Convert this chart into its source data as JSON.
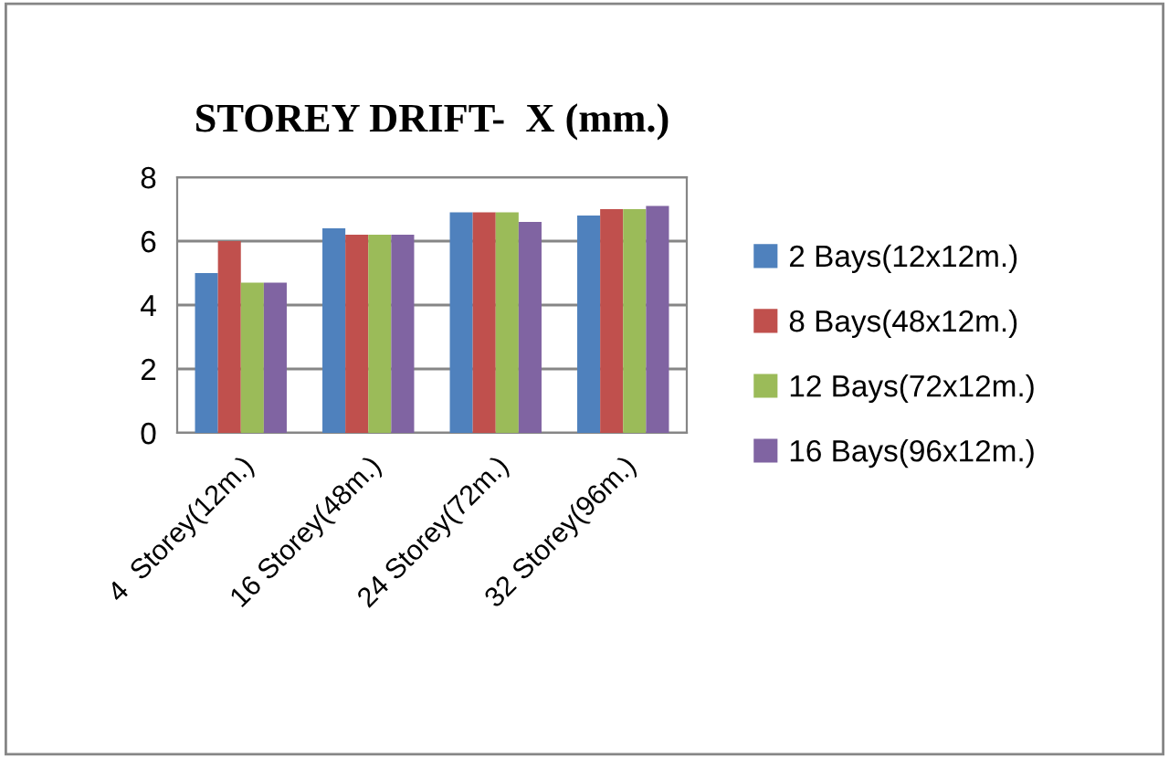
{
  "chart_data": {
    "type": "bar",
    "title": "STOREY DRIFT-  X (mm.)",
    "categories": [
      "4  Storey(12m.)",
      "16 Storey(48m.)",
      "24 Storey(72m.)",
      "32 Storey(96m.)"
    ],
    "series": [
      {
        "name": "2 Bays(12x12m.)",
        "color": "#4f81bd",
        "values": [
          5.0,
          6.4,
          6.9,
          6.8
        ]
      },
      {
        "name": "8 Bays(48x12m.)",
        "color": "#c0504d",
        "values": [
          6.0,
          6.2,
          6.9,
          7.0
        ]
      },
      {
        "name": "12 Bays(72x12m.)",
        "color": "#9bbb59",
        "values": [
          4.7,
          6.2,
          6.9,
          7.0
        ]
      },
      {
        "name": "16 Bays(96x12m.)",
        "color": "#8064a2",
        "values": [
          4.7,
          6.2,
          6.6,
          7.1
        ]
      }
    ],
    "ylim": [
      0,
      8
    ],
    "yticks": [
      0,
      2,
      4,
      6,
      8
    ],
    "grid": "y",
    "legend": "right"
  }
}
